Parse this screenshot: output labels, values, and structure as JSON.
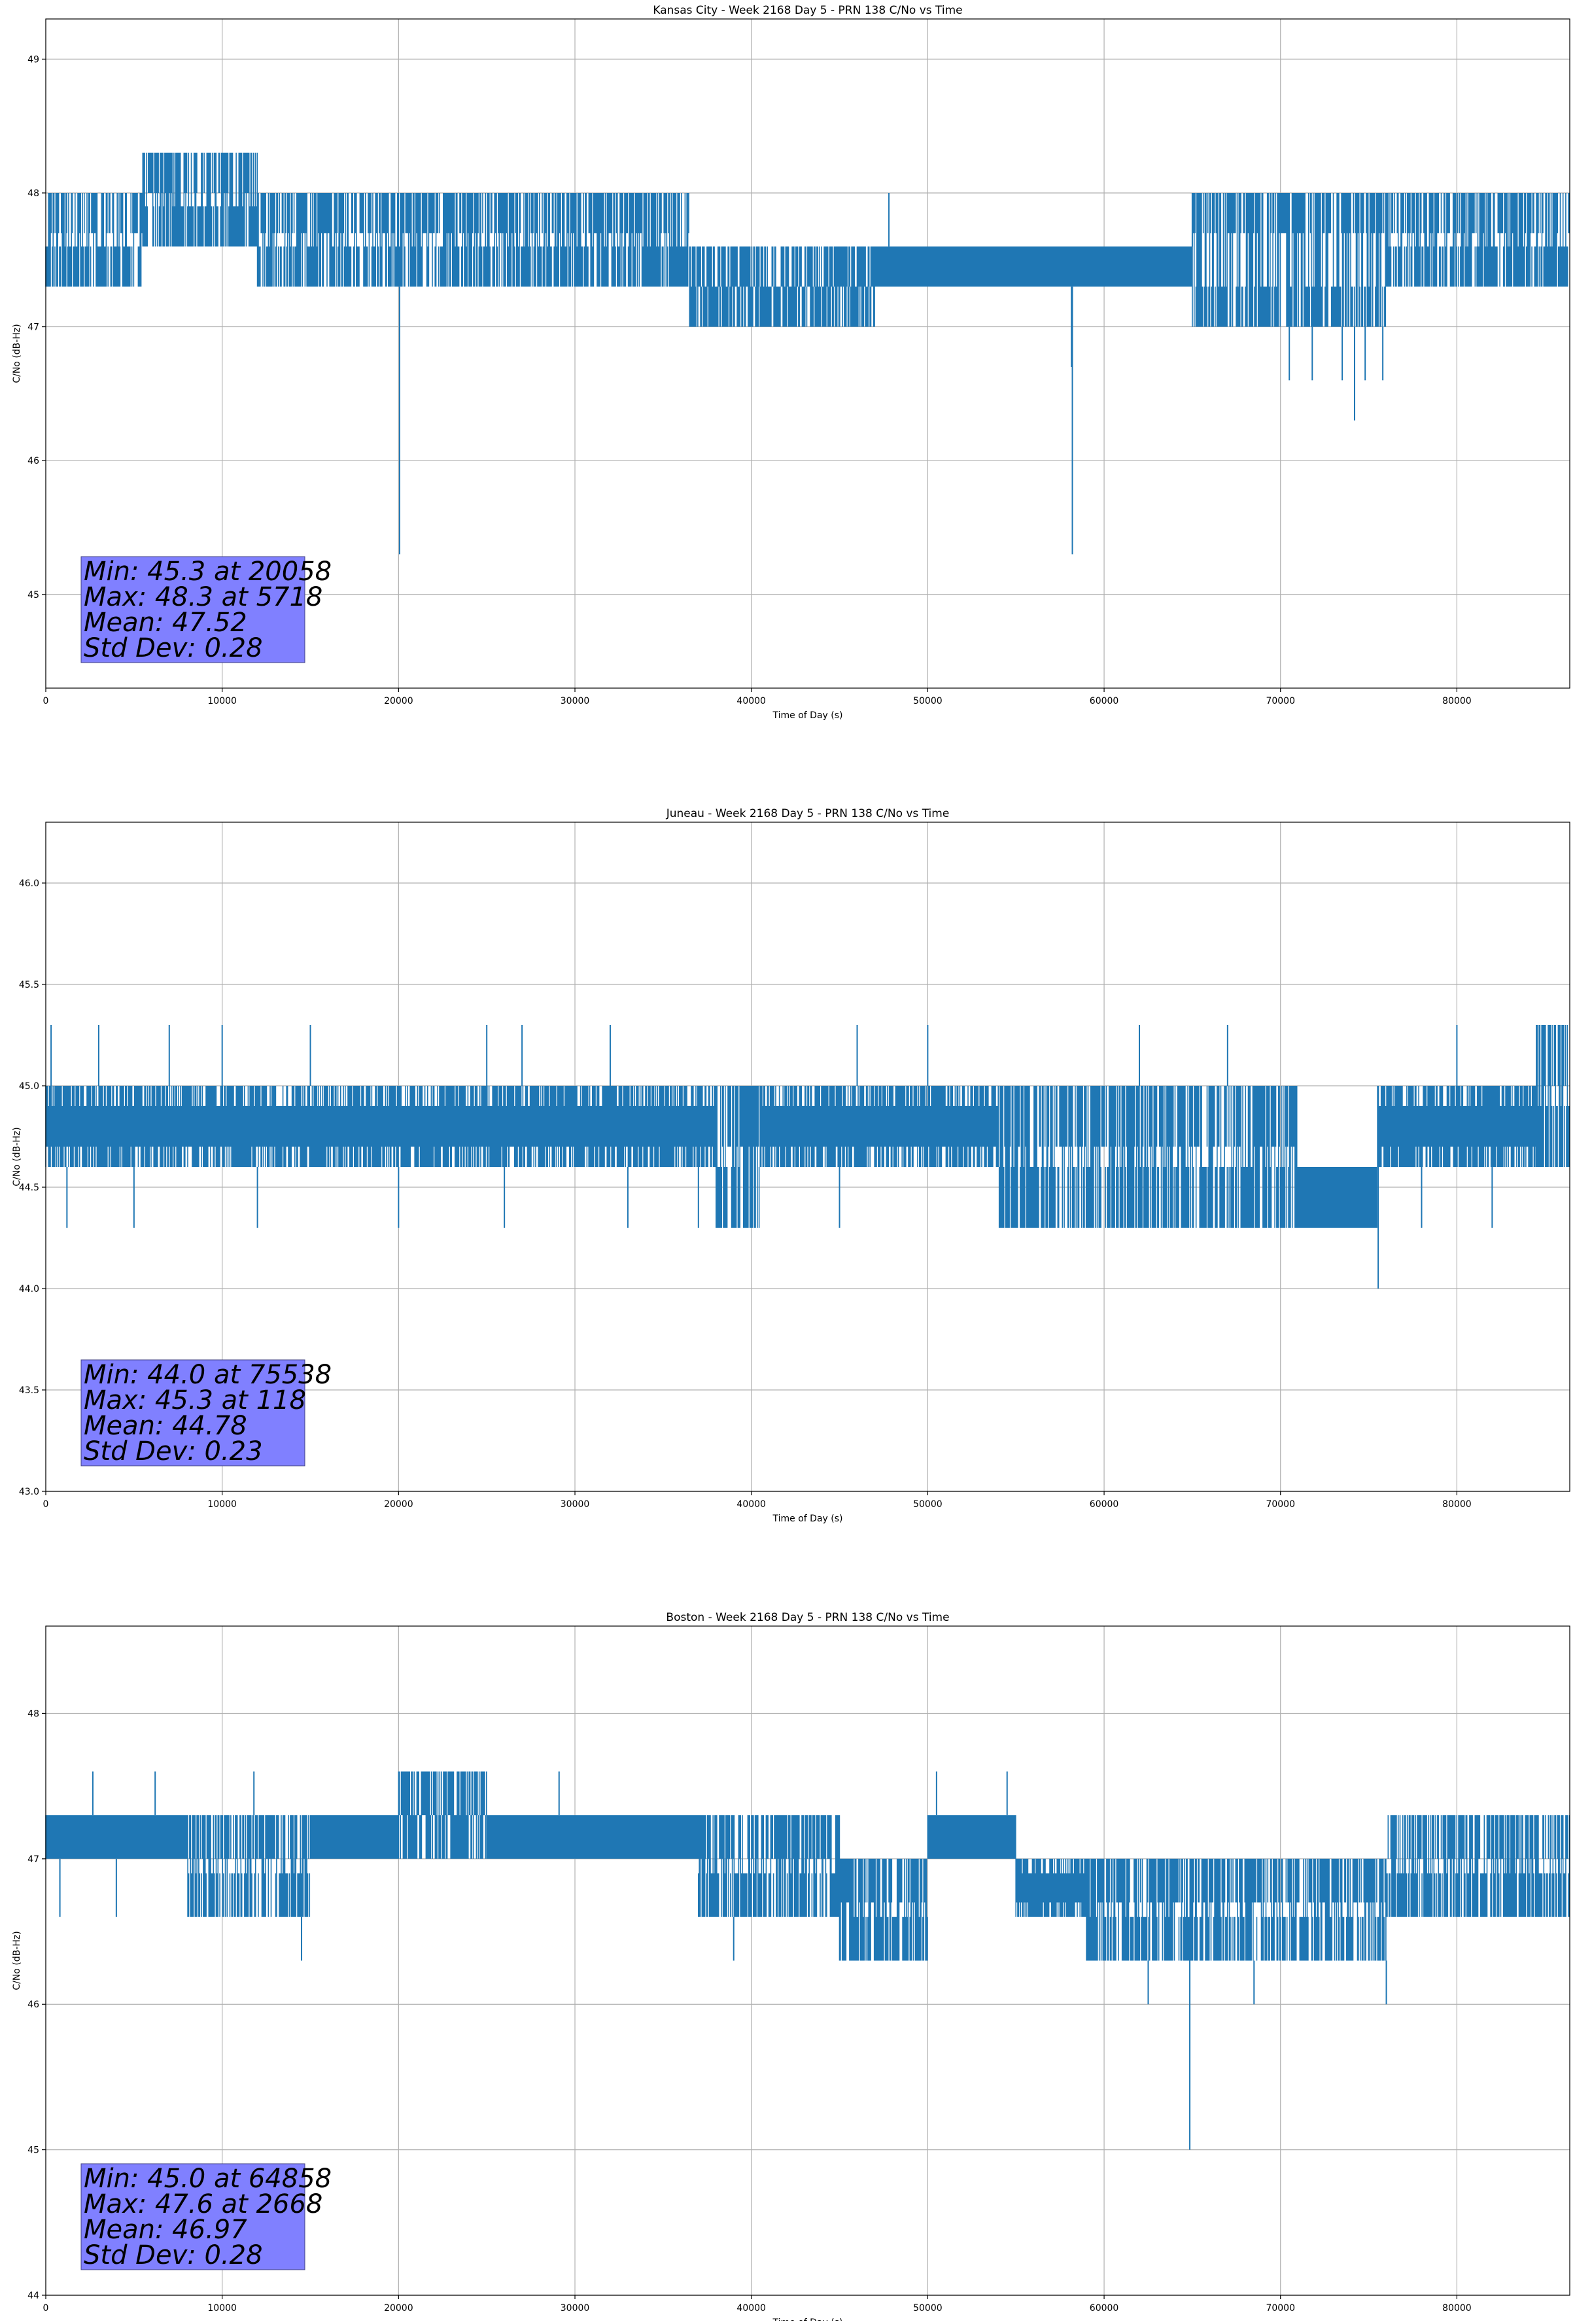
{
  "colors": {
    "series": "#1f77b4",
    "statsbox": "#8080ff",
    "grid": "#b0b0b0"
  },
  "chart_data": [
    {
      "type": "line",
      "title": "Kansas City - Week 2168 Day 5 - PRN 138 C/No vs Time",
      "xlabel": "Time of Day (s)",
      "ylabel": "C/No (dB-Hz)",
      "xlim": [
        0,
        86400
      ],
      "ylim": [
        44.3,
        49.3
      ],
      "xticks": [
        0,
        10000,
        20000,
        30000,
        40000,
        50000,
        60000,
        70000,
        80000
      ],
      "yticks": [
        45,
        46,
        47,
        48,
        49
      ],
      "ytick_labels": [
        "45",
        "46",
        "47",
        "48",
        "49"
      ],
      "grid": true,
      "series": [
        {
          "bands": [
            [
              0,
              5500,
              47.3,
              48.0
            ],
            [
              5500,
              12000,
              47.6,
              48.3
            ],
            [
              12000,
              36500,
              47.3,
              48.0
            ],
            [
              36500,
              47000,
              47.0,
              47.6
            ],
            [
              47000,
              65000,
              47.3,
              47.6
            ],
            [
              65000,
              76000,
              47.0,
              48.0
            ],
            [
              76000,
              86400,
              47.3,
              48.0
            ]
          ],
          "spikes": [
            [
              20058,
              45.3
            ],
            [
              58200,
              45.3
            ],
            [
              58150,
              46.7
            ],
            [
              74200,
              46.3
            ],
            [
              70500,
              46.6
            ],
            [
              71800,
              46.6
            ],
            [
              73500,
              46.6
            ],
            [
              74800,
              46.6
            ],
            [
              75800,
              46.6
            ],
            [
              47800,
              48.0
            ],
            [
              65000,
              48.0
            ],
            [
              69000,
              48.0
            ],
            [
              82000,
              48.0
            ],
            [
              84500,
              48.0
            ]
          ]
        }
      ],
      "stats": [
        "Min: 45.3 at 20058",
        "Max: 48.3 at 5718",
        "Mean: 47.52",
        "Std Dev: 0.28"
      ]
    },
    {
      "type": "line",
      "title": "Juneau - Week 2168 Day 5 - PRN 138 C/No vs Time",
      "xlabel": "Time of Day (s)",
      "ylabel": "C/No (dB-Hz)",
      "xlim": [
        0,
        86400
      ],
      "ylim": [
        43.0,
        46.3
      ],
      "xticks": [
        0,
        10000,
        20000,
        30000,
        40000,
        50000,
        60000,
        70000,
        80000
      ],
      "yticks": [
        43.0,
        43.5,
        44.0,
        44.5,
        45.0,
        45.5,
        46.0
      ],
      "ytick_labels": [
        "43.0",
        "43.5",
        "44.0",
        "44.5",
        "45.0",
        "45.5",
        "46.0"
      ],
      "grid": true,
      "series": [
        {
          "bands": [
            [
              0,
              38000,
              44.6,
              45.0
            ],
            [
              38000,
              40500,
              44.3,
              45.0
            ],
            [
              40500,
              54000,
              44.6,
              45.0
            ],
            [
              54000,
              71000,
              44.3,
              45.0
            ],
            [
              71000,
              75500,
              44.3,
              44.6
            ],
            [
              75500,
              84500,
              44.6,
              45.0
            ],
            [
              84500,
              86400,
              44.6,
              45.3
            ]
          ],
          "spikes": [
            [
              75538,
              44.0
            ],
            [
              300,
              45.3
            ],
            [
              3000,
              45.3
            ],
            [
              7000,
              45.3
            ],
            [
              10000,
              45.3
            ],
            [
              15000,
              45.3
            ],
            [
              25000,
              45.3
            ],
            [
              27000,
              45.3
            ],
            [
              32000,
              45.3
            ],
            [
              46000,
              45.3
            ],
            [
              50000,
              45.3
            ],
            [
              62000,
              45.3
            ],
            [
              67000,
              45.3
            ],
            [
              80000,
              45.3
            ],
            [
              1200,
              44.3
            ],
            [
              5000,
              44.3
            ],
            [
              12000,
              44.3
            ],
            [
              20000,
              44.3
            ],
            [
              26000,
              44.3
            ],
            [
              33000,
              44.3
            ],
            [
              37000,
              44.3
            ],
            [
              45000,
              44.3
            ],
            [
              78000,
              44.3
            ],
            [
              82000,
              44.3
            ]
          ]
        }
      ],
      "stats": [
        "Min: 44.0 at 75538",
        "Max: 45.3 at 118",
        "Mean: 44.78",
        "Std Dev: 0.23"
      ]
    },
    {
      "type": "line",
      "title": "Boston - Week 2168 Day 5 - PRN 138 C/No vs Time",
      "xlabel": "Time of Day (s)",
      "ylabel": "C/No (dB-Hz)",
      "xlim": [
        0,
        86400
      ],
      "ylim": [
        44.0,
        48.6
      ],
      "xticks": [
        0,
        10000,
        20000,
        30000,
        40000,
        50000,
        60000,
        70000,
        80000
      ],
      "yticks": [
        44,
        45,
        46,
        47,
        48
      ],
      "ytick_labels": [
        "44",
        "45",
        "46",
        "47",
        "48"
      ],
      "grid": true,
      "series": [
        {
          "bands": [
            [
              0,
              8000,
              47.0,
              47.3
            ],
            [
              8000,
              15000,
              46.6,
              47.3
            ],
            [
              15000,
              20000,
              47.0,
              47.3
            ],
            [
              20000,
              25000,
              47.0,
              47.6
            ],
            [
              25000,
              37000,
              47.0,
              47.3
            ],
            [
              37000,
              45000,
              46.6,
              47.3
            ],
            [
              45000,
              50000,
              46.3,
              47.0
            ],
            [
              50000,
              55000,
              47.0,
              47.3
            ],
            [
              55000,
              59000,
              46.6,
              47.0
            ],
            [
              59000,
              76000,
              46.3,
              47.0
            ],
            [
              76000,
              86400,
              46.6,
              47.3
            ]
          ],
          "spikes": [
            [
              64858,
              45.0
            ],
            [
              2668,
              47.6
            ],
            [
              6200,
              47.6
            ],
            [
              11800,
              47.6
            ],
            [
              29100,
              47.6
            ],
            [
              50500,
              47.6
            ],
            [
              54500,
              47.6
            ],
            [
              14500,
              46.3
            ],
            [
              39000,
              46.3
            ],
            [
              62500,
              46.0
            ],
            [
              68500,
              46.0
            ],
            [
              76000,
              46.0
            ],
            [
              800,
              46.6
            ],
            [
              4000,
              46.6
            ]
          ]
        }
      ],
      "stats": [
        "Min: 45.0 at 64858",
        "Max: 47.6 at 2668",
        "Mean: 46.97",
        "Std Dev: 0.28"
      ]
    }
  ]
}
